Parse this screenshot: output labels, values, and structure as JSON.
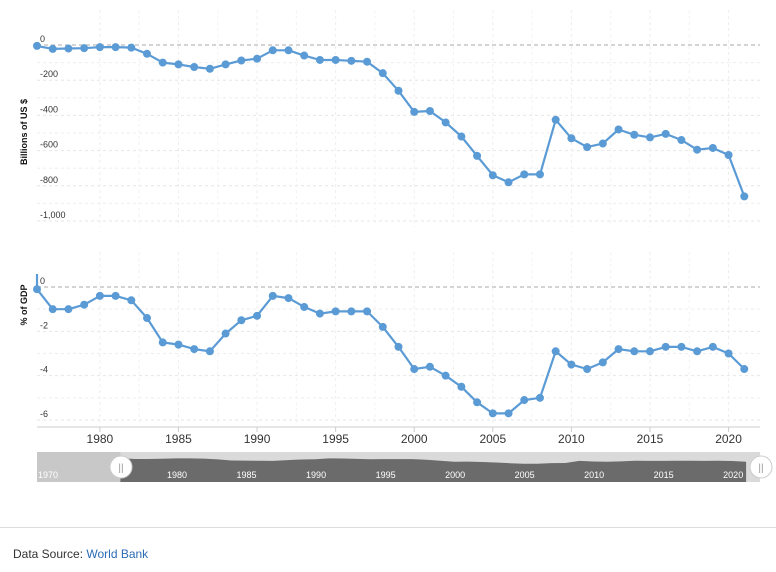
{
  "chart_data": [
    {
      "type": "line",
      "ylabel": "Billions of US $",
      "ylim": [
        -1000,
        0
      ],
      "yticks": [
        0,
        -200,
        -400,
        -600,
        -800,
        -1000
      ],
      "ytick_labels": [
        "0",
        "-200",
        "-400",
        "-600",
        "-800",
        "-1,000"
      ],
      "grid": true,
      "color": "#5b9bd5",
      "series": [
        {
          "x": [
            1976,
            1977,
            1978,
            1979,
            1980,
            1981,
            1982,
            1983,
            1984,
            1985,
            1986,
            1987,
            1988,
            1989,
            1990,
            1991,
            1992,
            1993,
            1994,
            1995,
            1996,
            1997,
            1998,
            1999,
            2000,
            2001,
            2002,
            2003,
            2004,
            2005,
            2006,
            2007,
            2008,
            2009,
            2010,
            2011,
            2012,
            2013,
            2014,
            2015,
            2016,
            2017,
            2018,
            2019,
            2020,
            2021
          ],
          "values": [
            -5,
            -22,
            -20,
            -18,
            -12,
            -12,
            -15,
            -50,
            -100,
            -110,
            -125,
            -135,
            -110,
            -88,
            -78,
            -30,
            -30,
            -60,
            -85,
            -85,
            -90,
            -95,
            -160,
            -260,
            -380,
            -375,
            -440,
            -520,
            -630,
            -740,
            -780,
            -735,
            -735,
            -425,
            -530,
            -580,
            -560,
            -480,
            -510,
            -525,
            -505,
            -540,
            -595,
            -585,
            -625,
            -860
          ]
        }
      ]
    },
    {
      "type": "line",
      "ylabel": "% of GDP",
      "ylim": [
        -6,
        0
      ],
      "yticks": [
        0,
        -2,
        -4,
        -6
      ],
      "ytick_labels": [
        "0",
        "-2",
        "-4",
        "-6"
      ],
      "grid": true,
      "color": "#5b9bd5",
      "series": [
        {
          "x": [
            1976,
            1977,
            1978,
            1979,
            1980,
            1981,
            1982,
            1983,
            1984,
            1985,
            1986,
            1987,
            1988,
            1989,
            1990,
            1991,
            1992,
            1993,
            1994,
            1995,
            1996,
            1997,
            1998,
            1999,
            2000,
            2001,
            2002,
            2003,
            2004,
            2005,
            2006,
            2007,
            2008,
            2009,
            2010,
            2011,
            2012,
            2013,
            2014,
            2015,
            2016,
            2017,
            2018,
            2019,
            2020,
            2021
          ],
          "values": [
            -0.1,
            -1.0,
            -1.0,
            -0.8,
            -0.4,
            -0.4,
            -0.6,
            -1.4,
            -2.5,
            -2.6,
            -2.8,
            -2.9,
            -2.1,
            -1.5,
            -1.3,
            -0.4,
            -0.5,
            -0.9,
            -1.2,
            -1.1,
            -1.1,
            -1.1,
            -1.8,
            -2.7,
            -3.7,
            -3.6,
            -4.0,
            -4.5,
            -5.2,
            -5.7,
            -5.7,
            -5.1,
            -5.0,
            -2.9,
            -3.5,
            -3.7,
            -3.4,
            -2.8,
            -2.9,
            -2.9,
            -2.7,
            -2.7,
            -2.9,
            -2.7,
            -3.0,
            -3.7
          ]
        }
      ]
    }
  ],
  "x_axis": {
    "xlim": [
      1976,
      2022
    ],
    "tick_values": [
      1980,
      1985,
      1990,
      1995,
      2000,
      2005,
      2010,
      2015,
      2020
    ],
    "tick_labels": [
      "1980",
      "1985",
      "1990",
      "1995",
      "2000",
      "2005",
      "2010",
      "2015",
      "2020"
    ]
  },
  "navigator": {
    "xlim": [
      1970,
      2022
    ],
    "selected_range": [
      1976,
      2022
    ],
    "labels": [
      "1970",
      "1980",
      "1985",
      "1990",
      "1995",
      "2000",
      "2005",
      "2010",
      "2015",
      "2020"
    ],
    "label_years": [
      1970,
      1980,
      1985,
      1990,
      1995,
      2000,
      2005,
      2010,
      2015,
      2020
    ],
    "handle_glyph": "||"
  },
  "footer": {
    "source_prefix": "Data Source: ",
    "source_link": "World Bank"
  }
}
